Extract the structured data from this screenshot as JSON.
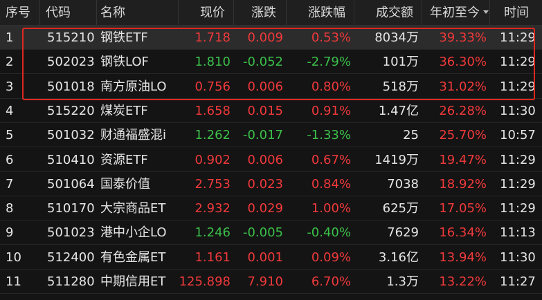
{
  "table": {
    "columns": [
      "序号",
      "代码",
      "名称",
      "现价",
      "涨跌",
      "涨跌幅",
      "成交额",
      "年初至今",
      "时间"
    ],
    "rows": [
      [
        "1",
        "515210",
        "钢铁ETF",
        "1.718",
        "0.009",
        "0.53%",
        "8034万",
        "39.33%",
        "11:29"
      ],
      [
        "2",
        "502023",
        "钢铁LOF",
        "1.810",
        "-0.052",
        "-2.79%",
        "101万",
        "36.30%",
        "11:29"
      ],
      [
        "3",
        "501018",
        "南方原油LO",
        "0.756",
        "0.006",
        "0.80%",
        "518万",
        "31.02%",
        "11:29"
      ],
      [
        "4",
        "515220",
        "煤炭ETF",
        "1.658",
        "0.015",
        "0.91%",
        "1.47亿",
        "26.28%",
        "11:30"
      ],
      [
        "5",
        "501032",
        "财通福盛混i",
        "1.262",
        "-0.017",
        "-1.33%",
        "25",
        "25.70%",
        "10:57"
      ],
      [
        "6",
        "510410",
        "资源ETF",
        "0.902",
        "0.006",
        "0.67%",
        "1419万",
        "19.47%",
        "11:29"
      ],
      [
        "7",
        "501064",
        "国泰价值",
        "2.753",
        "0.023",
        "0.84%",
        "7038",
        "18.92%",
        "11:29"
      ],
      [
        "8",
        "510170",
        "大宗商品ET",
        "2.932",
        "0.029",
        "1.00%",
        "625万",
        "17.05%",
        "11:29"
      ],
      [
        "9",
        "501023",
        "港中小企LO",
        "1.246",
        "-0.005",
        "-0.40%",
        "7629",
        "16.34%",
        "11:13"
      ],
      [
        "10",
        "512400",
        "有色金属ET",
        "1.161",
        "0.001",
        "0.09%",
        "3.16亿",
        "13.94%",
        "11:30"
      ],
      [
        "11",
        "511280",
        "中期信用ET",
        "125.898",
        "7.910",
        "6.70%",
        "1.3万",
        "13.22%",
        "11:27"
      ]
    ]
  }
}
